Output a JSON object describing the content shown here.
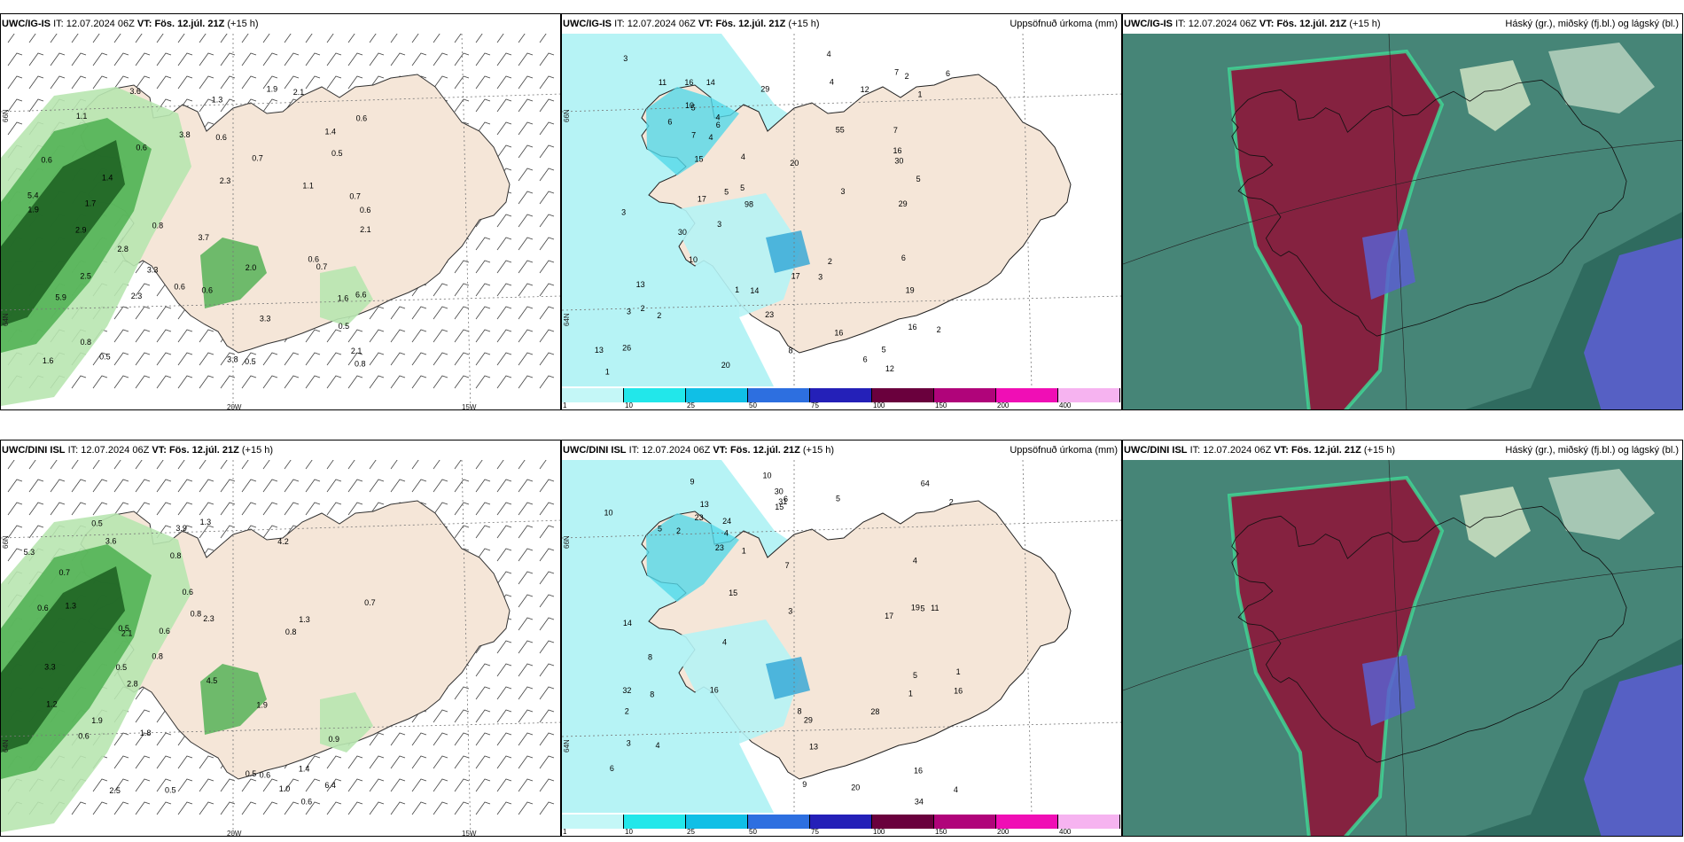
{
  "colors": {
    "land": "#f5e6d8",
    "ocean": "#ffffff",
    "wind_green_light": "#b8e6b0",
    "wind_green_mid": "#4caf50",
    "wind_green_dark": "#1b5e20",
    "precip_cyan_light": "#b6f3f5",
    "precip_cyan": "#55d8e8",
    "precip_blue": "#2fa5d6",
    "cloud_high": "#2e7d6a",
    "cloud_mid": "#8b1a3c",
    "cloud_low": "#5b5fcf",
    "cloud_edge": "#3ddc97"
  },
  "colorbar": {
    "colors": [
      "#c4f7f7",
      "#22e7ea",
      "#10bfe6",
      "#2d6fe0",
      "#2420b8",
      "#6a003d",
      "#b0047a",
      "#f00eb5",
      "#f6b3f0"
    ],
    "ticks": [
      "1",
      "10",
      "25",
      "50",
      "75",
      "100",
      "150",
      "200",
      "400"
    ]
  },
  "panels": [
    {
      "id": "igis-wind",
      "model": "UWC/IG-IS",
      "it_label": "IT:",
      "it": "12.07.2024 06Z",
      "vt_label": "VT:",
      "vt": "Fös. 12.júl. 21Z",
      "lead": "(+15 h)",
      "right": "",
      "axes": {
        "lat1": "66N",
        "lat2": "64N",
        "lon1": "20W",
        "lon2": "15W"
      },
      "values": [
        "0.6",
        "0.7",
        "0.7",
        "0.6",
        "0.8",
        "6.6",
        "3.3",
        "1.9",
        "1.6",
        "1.4",
        "1.4",
        "0.7",
        "1.1",
        "2.3",
        "5.9",
        "3.7",
        "2.8",
        "5.4",
        "3.6",
        "3.8",
        "2.1",
        "0.6",
        "0.8",
        "2.5",
        "2.3",
        "2.1",
        "1.6",
        "3.3",
        "3.8",
        "0.6",
        "0.5",
        "0.8",
        "2.9",
        "1.3",
        "1.7",
        "1.9",
        "2.1",
        "2.0",
        "0.5",
        "0.6",
        "0.5",
        "0.6",
        "0.6",
        "0.6",
        "0.5",
        "1.1"
      ]
    },
    {
      "id": "igis-precip",
      "model": "UWC/IG-IS",
      "it_label": "IT:",
      "it": "12.07.2024 06Z",
      "vt_label": "VT:",
      "vt": "Fös. 12.júl. 21Z",
      "lead": "(+15 h)",
      "right": "Uppsöfnuð úrkoma (mm)",
      "axes": {
        "lat1": "66N",
        "lat2": "64N"
      },
      "values": [
        "2",
        "5",
        "6",
        "6",
        "7",
        "8",
        "7",
        "12",
        "16",
        "13",
        "17",
        "55",
        "26",
        "1",
        "5",
        "1",
        "3",
        "2",
        "4",
        "12",
        "15",
        "16",
        "1",
        "2",
        "2",
        "23",
        "20",
        "14",
        "29",
        "30",
        "4",
        "17",
        "14",
        "30",
        "11",
        "20",
        "29",
        "19",
        "7",
        "6",
        "3",
        "4",
        "6",
        "16",
        "3",
        "5",
        "5",
        "4",
        "10",
        "16",
        "98",
        "3",
        "5",
        "6",
        "10",
        "4",
        "2",
        "3",
        "13",
        "3"
      ]
    },
    {
      "id": "igis-cloud",
      "model": "UWC/IG-IS",
      "it_label": "IT:",
      "it": "12.07.2024 06Z",
      "vt_label": "VT:",
      "vt": "Fös. 12.júl. 21Z",
      "lead": "(+15 h)",
      "right": "Háský (gr.), miðský (fj.bl.) og lágský (bl.)"
    },
    {
      "id": "dini-wind",
      "model": "UWC/DINI ISL",
      "it_label": "IT:",
      "it": "12.07.2024 06Z",
      "vt_label": "VT:",
      "vt": "Fös. 12.júl. 21Z",
      "lead": "(+15 h)",
      "right": "",
      "axes": {
        "lat1": "66N",
        "lat2": "64N",
        "lon1": "20W",
        "lon2": "15W"
      },
      "values": [
        "0.6",
        "0.5",
        "4.5",
        "3.3",
        "3.6",
        "0.5",
        "0.5",
        "0.6",
        "1.9",
        "2.3",
        "0.8",
        "6.4",
        "4.2",
        "1.9",
        "1.3",
        "0.8",
        "0.6",
        "0.8",
        "1.4",
        "1.3",
        "0.7",
        "2.8",
        "5.3",
        "1.0",
        "2.5",
        "3.9",
        "0.6",
        "0.7",
        "0.8",
        "0.5",
        "0.6",
        "0.5",
        "0.9",
        "0.6",
        "1.8",
        "1.3",
        "1.2",
        "2.1"
      ]
    },
    {
      "id": "dini-precip",
      "model": "UWC/DINI ISL",
      "it_label": "IT:",
      "it": "12.07.2024 06Z",
      "vt_label": "VT:",
      "vt": "Fös. 12.júl. 21Z",
      "lead": "(+15 h)",
      "right": "Uppsöfnuð úrkoma (mm)",
      "axes": {
        "lat1": "66N",
        "lat2": "64N"
      },
      "values": [
        "8",
        "7",
        "5",
        "13",
        "16",
        "17",
        "28",
        "64",
        "23",
        "16",
        "8",
        "1",
        "4",
        "5",
        "2",
        "1",
        "3",
        "4",
        "30",
        "31",
        "20",
        "29",
        "11",
        "13",
        "16",
        "2",
        "24",
        "10",
        "15",
        "23",
        "14",
        "32",
        "19",
        "10",
        "9",
        "9",
        "15",
        "8",
        "5",
        "6",
        "4",
        "6",
        "4",
        "2",
        "3",
        "34",
        "1",
        "4",
        "5"
      ]
    },
    {
      "id": "dini-cloud",
      "model": "UWC/DINI ISL",
      "it_label": "IT:",
      "it": "12.07.2024 06Z",
      "vt_label": "VT:",
      "vt": "Fös. 12.júl. 21Z",
      "lead": "(+15 h)",
      "right": "Háský (gr.), miðský (fj.bl.) og lágský (bl.)"
    }
  ]
}
